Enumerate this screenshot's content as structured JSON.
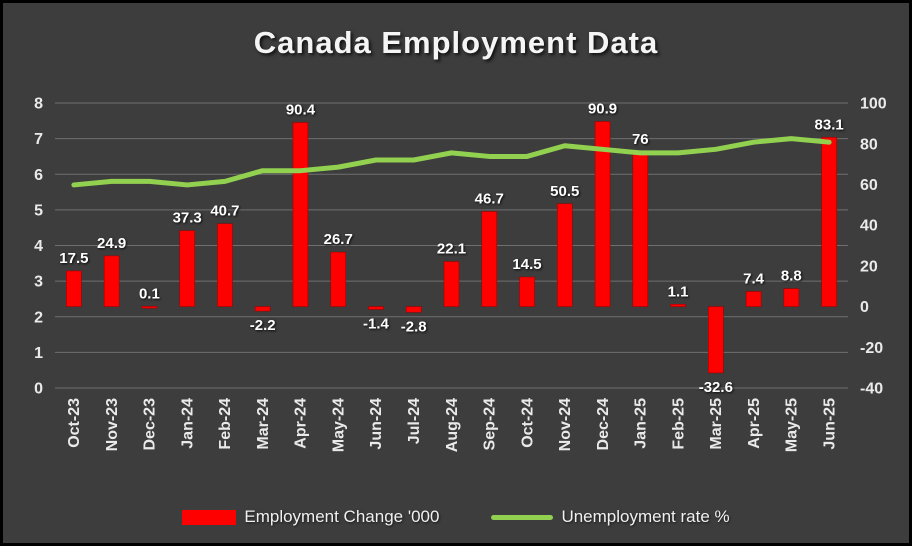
{
  "chart_data": {
    "type": "bar+line combo",
    "title": "Canada Employment Data",
    "categories": [
      "Oct-23",
      "Nov-23",
      "Dec-23",
      "Jan-24",
      "Feb-24",
      "Mar-24",
      "Apr-24",
      "May-24",
      "Jun-24",
      "Jul-24",
      "Aug-24",
      "Sep-24",
      "Oct-24",
      "Nov-24",
      "Dec-24",
      "Jan-25",
      "Feb-25",
      "Mar-25",
      "Apr-25",
      "May-25",
      "Jun-25"
    ],
    "series": [
      {
        "name": "Employment Change '000",
        "type": "bar",
        "axis": "right",
        "color": "#ff0000",
        "values": [
          17.5,
          24.9,
          0.1,
          37.3,
          40.7,
          -2.2,
          90.4,
          26.7,
          -1.4,
          -2.8,
          22.1,
          46.7,
          14.5,
          50.5,
          90.9,
          76,
          1.1,
          -32.6,
          7.4,
          8.8,
          83.1
        ]
      },
      {
        "name": "Unemployment rate %",
        "type": "line",
        "axis": "left",
        "color": "#92d050",
        "values": [
          5.7,
          5.8,
          5.8,
          5.7,
          5.8,
          6.1,
          6.1,
          6.2,
          6.4,
          6.4,
          6.6,
          6.5,
          6.5,
          6.8,
          6.7,
          6.6,
          6.6,
          6.7,
          6.9,
          7.0,
          6.9
        ]
      }
    ],
    "bar_labels": [
      "17.5",
      "24.9",
      "0.1",
      "37.3",
      "40.7",
      "-2.2",
      "90.4",
      "26.7",
      "-1.4",
      "-2.8",
      "22.1",
      "46.7",
      "14.5",
      "50.5",
      "90.9",
      "76",
      "1.1",
      "-32.6",
      "7.4",
      "8.8",
      "83.1"
    ],
    "left_axis": {
      "min": 0,
      "max": 8,
      "ticks": [
        8,
        7,
        6,
        5,
        4,
        3,
        2,
        1,
        0
      ]
    },
    "right_axis": {
      "min": -40,
      "max": 100,
      "ticks": [
        100,
        80,
        60,
        40,
        20,
        0,
        -20,
        -40
      ]
    },
    "grid": "horizontal",
    "legend_position": "bottom"
  }
}
